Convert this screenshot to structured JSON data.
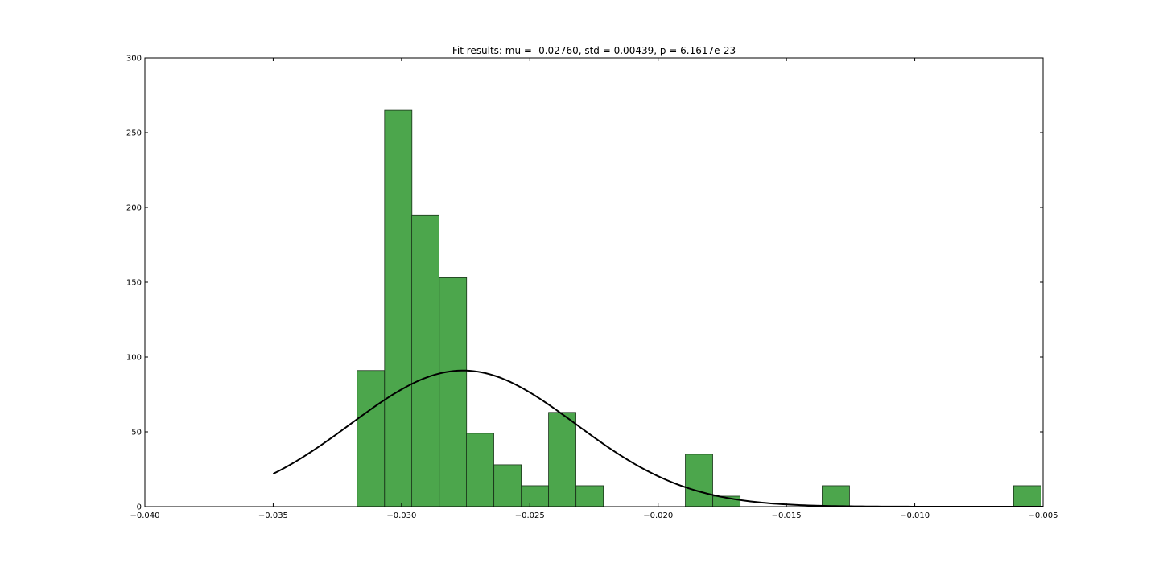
{
  "chart_data": {
    "type": "bar",
    "title": "Fit results: mu = -0.02760,  std = 0.00439, p = 6.1617e-23",
    "xlabel": "",
    "ylabel": "",
    "xlim": [
      -0.04,
      -0.005
    ],
    "ylim": [
      0,
      300
    ],
    "grid": false,
    "x_ticks": [
      -0.04,
      -0.035,
      -0.03,
      -0.025,
      -0.02,
      -0.015,
      -0.01,
      -0.005
    ],
    "x_tick_labels": [
      "−0.040",
      "−0.035",
      "−0.030",
      "−0.025",
      "−0.020",
      "−0.015",
      "−0.010",
      "−0.005"
    ],
    "y_ticks": [
      0,
      50,
      100,
      150,
      200,
      250,
      300
    ],
    "y_tick_labels": [
      "0",
      "50",
      "100",
      "150",
      "200",
      "250",
      "300"
    ],
    "series": [
      {
        "kind": "histogram",
        "color": "#4ca64c",
        "edge_color": "#1a331a",
        "bin_width": 0.001066,
        "bin_starts": [
          -0.03173,
          -0.03066,
          -0.0296,
          -0.02853,
          -0.02747,
          -0.0264,
          -0.02534,
          -0.02427,
          -0.0232,
          -0.01894,
          -0.01787,
          -0.01361,
          -0.00615
        ],
        "values": [
          91,
          265,
          195,
          153,
          49,
          28,
          14,
          63,
          14,
          35,
          7,
          14,
          14
        ]
      },
      {
        "kind": "fit-curve",
        "color": "#000000",
        "mu": -0.0276,
        "std": 0.00439,
        "peak": 91,
        "x_range": [
          -0.035,
          -0.005
        ]
      }
    ]
  }
}
